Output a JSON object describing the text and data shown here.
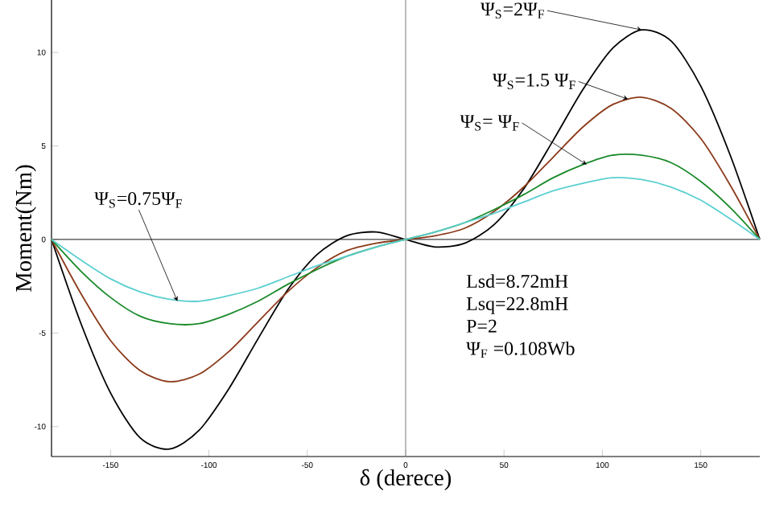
{
  "chart_data": {
    "type": "line",
    "xlabel": "δ (derece)",
    "ylabel": "Moment(Nm)",
    "x": [
      -180,
      -165,
      -150,
      -135,
      -120,
      -105,
      -90,
      -75,
      -60,
      -45,
      -30,
      -15,
      0,
      15,
      30,
      45,
      60,
      75,
      90,
      105,
      120,
      135,
      150,
      165,
      180
    ],
    "series": [
      {
        "color": "#000000",
        "values": [
          0,
          -4.5,
          -8.2,
          -10.6,
          -11.2,
          -10.2,
          -8,
          -5.3,
          -2.7,
          -0.8,
          0.2,
          0.4,
          0,
          -0.4,
          -0.2,
          0.8,
          2.7,
          5.3,
          8,
          10.2,
          11.2,
          10.6,
          8.2,
          4.5,
          0
        ]
      },
      {
        "color": "#8b3a1a",
        "values": [
          0,
          -2.9,
          -5.4,
          -7.0,
          -7.6,
          -7.2,
          -6,
          -4.4,
          -2.8,
          -1.5,
          -0.6,
          -0.2,
          0,
          0.2,
          0.6,
          1.5,
          2.8,
          4.4,
          6,
          7.2,
          7.6,
          7.0,
          5.4,
          2.9,
          0
        ]
      },
      {
        "color": "#1a8a2a",
        "values": [
          0,
          -1.7,
          -3.1,
          -4.1,
          -4.5,
          -4.5,
          -4,
          -3.3,
          -2.4,
          -1.6,
          -0.9,
          -0.4,
          0,
          0.4,
          0.9,
          1.6,
          2.4,
          3.3,
          4,
          4.5,
          4.5,
          4.1,
          3.1,
          1.7,
          0
        ]
      },
      {
        "color": "#5ccfd0",
        "values": [
          0,
          -1.1,
          -2.1,
          -2.8,
          -3.2,
          -3.3,
          -3,
          -2.6,
          -2.0,
          -1.4,
          -0.9,
          -0.4,
          0,
          0.4,
          0.9,
          1.4,
          2.0,
          2.6,
          3,
          3.3,
          3.2,
          2.8,
          2.1,
          1.1,
          0
        ]
      }
    ],
    "xlim": [
      -180,
      180
    ],
    "ylim": [
      -11.6,
      12.8
    ],
    "xticks": [
      -150,
      -100,
      -50,
      0,
      50,
      100,
      150
    ],
    "yticks": [
      -10,
      -5,
      0,
      5,
      10
    ],
    "ref_lines": [
      {
        "axis": "x",
        "value": 0,
        "color": "#909090"
      },
      {
        "axis": "y",
        "value": 0,
        "color": "#404040"
      }
    ],
    "annotations": [
      {
        "text": "Ψ$_{S}$=2Ψ$_{F}$",
        "x": 120,
        "y": 11.2
      },
      {
        "text": "Ψ$_{S}$=1.5 Ψ$_{F}$",
        "x": 113,
        "y": 7.5
      },
      {
        "text": "Ψ$_{S}$= Ψ$_{F}$",
        "x": 92,
        "y": 4.0
      },
      {
        "text": "Ψ$_{S}$=0.75Ψ$_{F}$",
        "x": -116,
        "y": -3.3
      },
      "Lsd=8.72mH",
      "Lsq=22.8mH",
      "P=2",
      "Ψ$_{F}$ =0.108Wb"
    ],
    "grid": false,
    "marker": "none",
    "line_style": "solid"
  }
}
